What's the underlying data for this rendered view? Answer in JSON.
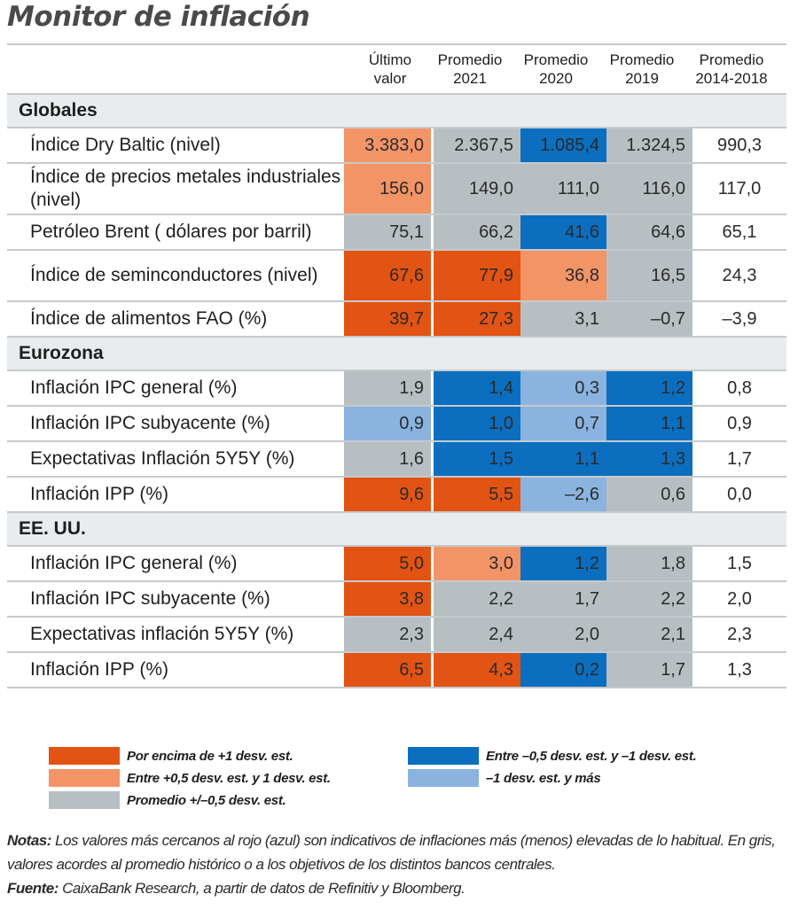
{
  "title": "Monitor de inflación",
  "colors": {
    "above_1sd": "#e25314",
    "between_05_1sd": "#f39467",
    "average": "#b8bfc3",
    "between_neg05_neg1sd": "#0c6ebf",
    "below_neg1sd": "#8bb3df",
    "none": "#ffffff"
  },
  "chart_data": {
    "type": "table",
    "title": "Monitor de inflación",
    "columns": [
      {
        "line1": "Último",
        "line2": "valor"
      },
      {
        "line1": "Promedio",
        "line2": "2021"
      },
      {
        "line1": "Promedio",
        "line2": "2020"
      },
      {
        "line1": "Promedio",
        "line2": "2019"
      },
      {
        "line1": "Promedio",
        "line2": "2014-2018"
      }
    ],
    "sections": [
      {
        "name": "Globales",
        "rows": [
          {
            "label": "Índice Dry Baltic (nivel)",
            "tall": false,
            "values": [
              "3.383,0",
              "2.367,5",
              "1.085,4",
              "1.324,5",
              "990,3"
            ],
            "colors": [
              "between_05_1sd",
              "average",
              "between_neg05_neg1sd",
              "average",
              "none"
            ]
          },
          {
            "label": "Índice de precios metales industriales (nivel)",
            "tall": true,
            "values": [
              "156,0",
              "149,0",
              "111,0",
              "116,0",
              "117,0"
            ],
            "colors": [
              "between_05_1sd",
              "average",
              "average",
              "average",
              "none"
            ]
          },
          {
            "label": "Petróleo Brent ( dólares por barril)",
            "tall": false,
            "values": [
              "75,1",
              "66,2",
              "41,6",
              "64,6",
              "65,1"
            ],
            "colors": [
              "average",
              "average",
              "between_neg05_neg1sd",
              "average",
              "none"
            ]
          },
          {
            "label": "Índice de seminconductores (nivel)",
            "tall": true,
            "values": [
              "67,6",
              "77,9",
              "36,8",
              "16,5",
              "24,3"
            ],
            "colors": [
              "above_1sd",
              "above_1sd",
              "between_05_1sd",
              "average",
              "none"
            ]
          },
          {
            "label": "Índice de alimentos FAO (%)",
            "tall": false,
            "values": [
              "39,7",
              "27,3",
              "3,1",
              "–0,7",
              "–3,9"
            ],
            "colors": [
              "above_1sd",
              "above_1sd",
              "average",
              "average",
              "none"
            ]
          }
        ]
      },
      {
        "name": "Eurozona",
        "rows": [
          {
            "label": "Inflación IPC general (%)",
            "tall": false,
            "values": [
              "1,9",
              "1,4",
              "0,3",
              "1,2",
              "0,8"
            ],
            "colors": [
              "average",
              "between_neg05_neg1sd",
              "below_neg1sd",
              "between_neg05_neg1sd",
              "none"
            ]
          },
          {
            "label": "Inflación IPC subyacente (%)",
            "tall": false,
            "values": [
              "0,9",
              "1,0",
              "0,7",
              "1,1",
              "0,9"
            ],
            "colors": [
              "below_neg1sd",
              "between_neg05_neg1sd",
              "below_neg1sd",
              "between_neg05_neg1sd",
              "none"
            ]
          },
          {
            "label": "Expectativas Inflación 5Y5Y (%)",
            "tall": false,
            "values": [
              "1,6",
              "1,5",
              "1,1",
              "1,3",
              "1,7"
            ],
            "colors": [
              "average",
              "between_neg05_neg1sd",
              "between_neg05_neg1sd",
              "between_neg05_neg1sd",
              "none"
            ]
          },
          {
            "label": "Inflación IPP (%)",
            "tall": false,
            "values": [
              "9,6",
              "5,5",
              "–2,6",
              "0,6",
              "0,0"
            ],
            "colors": [
              "above_1sd",
              "above_1sd",
              "below_neg1sd",
              "average",
              "none"
            ]
          }
        ]
      },
      {
        "name": "EE. UU.",
        "rows": [
          {
            "label": "Inflación IPC general (%)",
            "tall": false,
            "values": [
              "5,0",
              "3,0",
              "1,2",
              "1,8",
              "1,5"
            ],
            "colors": [
              "above_1sd",
              "between_05_1sd",
              "between_neg05_neg1sd",
              "average",
              "none"
            ]
          },
          {
            "label": "Inflación IPC subyacente (%)",
            "tall": false,
            "values": [
              "3,8",
              "2,2",
              "1,7",
              "2,2",
              "2,0"
            ],
            "colors": [
              "above_1sd",
              "average",
              "average",
              "average",
              "none"
            ]
          },
          {
            "label": "Expectativas inflación 5Y5Y (%)",
            "tall": false,
            "values": [
              "2,3",
              "2,4",
              "2,0",
              "2,1",
              "2,3"
            ],
            "colors": [
              "average",
              "average",
              "average",
              "average",
              "none"
            ]
          },
          {
            "label": "Inflación IPP (%)",
            "tall": false,
            "values": [
              "6,5",
              "4,3",
              "0,2",
              "1,7",
              "1,3"
            ],
            "colors": [
              "above_1sd",
              "above_1sd",
              "between_neg05_neg1sd",
              "average",
              "none"
            ]
          }
        ]
      }
    ],
    "legend": [
      {
        "key": "above_1sd",
        "label": "Por encima de +1 desv. est."
      },
      {
        "key": "between_05_1sd",
        "label": "Entre +0,5 desv. est. y 1 desv. est."
      },
      {
        "key": "average",
        "label": "Promedio +/–0,5 desv. est."
      },
      {
        "key": "between_neg05_neg1sd",
        "label": "Entre –0,5 desv. est. y –1 desv. est."
      },
      {
        "key": "below_neg1sd",
        "label": "–1 desv. est. y más"
      }
    ]
  },
  "notes": {
    "notas_label": "Notas:",
    "notas_text": " Los valores más cercanos al rojo (azul) son indicativos de inflaciones más (menos) elevadas de lo habitual. En gris, valores acordes al promedio histórico o a los objetivos de los distintos bancos centrales.",
    "fuente_label": "Fuente:",
    "fuente_text": " CaixaBank Research, a partir de datos de Refinitiv y Bloomberg."
  }
}
